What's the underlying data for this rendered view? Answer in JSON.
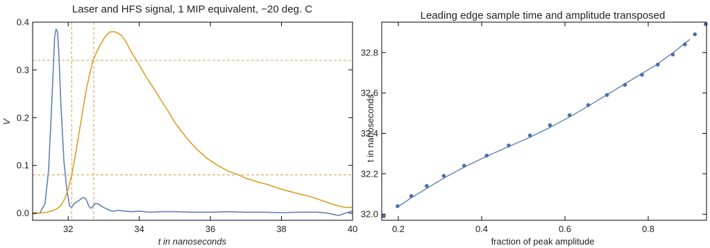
{
  "chart_data": [
    {
      "type": "line",
      "title": "Laser and HFS signal,  1 MIP equivalent,  −20 deg. C",
      "xlabel": "t in nanoseconds",
      "ylabel": "V",
      "xlim": [
        31,
        40
      ],
      "ylim": [
        -0.015,
        0.4
      ],
      "xticks": [
        32,
        34,
        36,
        38,
        40
      ],
      "yticks": [
        0.0,
        0.1,
        0.2,
        0.3,
        0.4
      ],
      "xtick_labels": [
        "32",
        "34",
        "36",
        "38",
        "40"
      ],
      "ytick_labels": [
        "0.0",
        "0.1",
        "0.2",
        "0.3",
        "0.4"
      ],
      "colors": {
        "blue": "#5e81b5",
        "orange": "#e19c24"
      },
      "series": [
        {
          "color": "#5e81b5",
          "x": [
            31.0,
            31.2,
            31.35,
            31.45,
            31.52,
            31.58,
            31.62,
            31.66,
            31.7,
            31.74,
            31.8,
            31.88,
            31.96,
            32.04,
            32.1,
            32.15,
            32.2,
            32.28,
            32.36,
            32.44,
            32.5,
            32.58,
            32.64,
            32.7,
            32.76,
            32.84,
            32.92,
            33.0,
            33.1,
            33.2,
            33.3,
            33.4,
            33.5,
            33.6,
            33.8,
            34.0,
            34.3,
            34.6,
            35.0,
            35.5,
            36.0,
            36.5,
            37.0,
            37.5,
            38.0,
            38.5,
            39.0,
            39.3,
            39.6,
            39.8,
            40.0
          ],
          "y": [
            0.0,
            0.0,
            0.02,
            0.09,
            0.2,
            0.3,
            0.37,
            0.385,
            0.38,
            0.33,
            0.22,
            0.11,
            0.05,
            0.015,
            0.012,
            0.018,
            0.022,
            0.025,
            0.03,
            0.033,
            0.03,
            0.015,
            0.01,
            0.015,
            0.02,
            0.02,
            0.015,
            0.012,
            0.008,
            0.005,
            0.004,
            0.006,
            0.005,
            0.004,
            0.003,
            0.004,
            0.002,
            0.003,
            0.003,
            0.002,
            0.002,
            0.003,
            0.002,
            0.002,
            0.001,
            0.002,
            0.002,
            0.0,
            -0.005,
            0.0,
            0.005
          ]
        },
        {
          "color": "#e19c24",
          "x": [
            31.0,
            31.2,
            31.4,
            31.6,
            31.7,
            31.8,
            31.9,
            32.0,
            32.1,
            32.2,
            32.3,
            32.4,
            32.5,
            32.6,
            32.7,
            32.8,
            32.9,
            33.0,
            33.1,
            33.2,
            33.3,
            33.4,
            33.5,
            33.6,
            33.7,
            33.8,
            34.0,
            34.2,
            34.5,
            34.8,
            35.0,
            35.3,
            35.6,
            35.9,
            36.2,
            36.5,
            36.8,
            37.0,
            37.3,
            37.6,
            38.0,
            38.4,
            38.8,
            39.0,
            39.3,
            39.6,
            39.8,
            40.0
          ],
          "y": [
            -0.002,
            0.0,
            0.002,
            0.006,
            0.01,
            0.016,
            0.03,
            0.05,
            0.08,
            0.12,
            0.165,
            0.21,
            0.255,
            0.29,
            0.32,
            0.337,
            0.352,
            0.365,
            0.375,
            0.38,
            0.38,
            0.377,
            0.372,
            0.362,
            0.348,
            0.335,
            0.31,
            0.285,
            0.25,
            0.215,
            0.19,
            0.16,
            0.135,
            0.115,
            0.1,
            0.088,
            0.08,
            0.073,
            0.066,
            0.06,
            0.05,
            0.042,
            0.035,
            0.03,
            0.022,
            0.015,
            0.012,
            0.012
          ]
        }
      ],
      "reference_lines": {
        "horizontal": [
          0.08,
          0.32
        ],
        "vertical": [
          32.1,
          32.72
        ],
        "color": "#d99a4a"
      }
    },
    {
      "type": "scatter",
      "title": "Leading edge sample time and amplitude transposed",
      "xlabel": "fraction of peak amplitude",
      "ylabel": "t in nanoseconds",
      "xlim": [
        0.16,
        0.94
      ],
      "ylim": [
        31.97,
        32.95
      ],
      "xticks": [
        0.2,
        0.4,
        0.6,
        0.8
      ],
      "yticks": [
        32.0,
        32.2,
        32.4,
        32.6,
        32.8
      ],
      "xtick_labels": [
        "0.2",
        "0.4",
        "0.6",
        "0.8"
      ],
      "ytick_labels": [
        "32.0",
        "32.2",
        "32.4",
        "32.6",
        "32.8"
      ],
      "colors": {
        "points": "#4a6fab",
        "fit": "#5e81b5"
      },
      "points": {
        "x": [
          0.165,
          0.198,
          0.231,
          0.268,
          0.309,
          0.358,
          0.412,
          0.465,
          0.516,
          0.564,
          0.611,
          0.656,
          0.701,
          0.744,
          0.785,
          0.823,
          0.859,
          0.888,
          0.912,
          0.938
        ],
        "y": [
          31.99,
          32.04,
          32.09,
          32.14,
          32.19,
          32.24,
          32.29,
          32.34,
          32.39,
          32.44,
          32.49,
          32.54,
          32.59,
          32.64,
          32.69,
          32.74,
          32.79,
          32.84,
          32.89,
          32.94
        ]
      },
      "fit": {
        "x": [
          0.198,
          0.23,
          0.27,
          0.31,
          0.36,
          0.41,
          0.46,
          0.51,
          0.56,
          0.61,
          0.66,
          0.7,
          0.74,
          0.78,
          0.82,
          0.86,
          0.9
        ],
        "y": [
          32.035,
          32.08,
          32.13,
          32.18,
          32.235,
          32.285,
          32.33,
          32.375,
          32.425,
          32.48,
          32.54,
          32.59,
          32.64,
          32.69,
          32.74,
          32.8,
          32.865
        ]
      }
    }
  ]
}
